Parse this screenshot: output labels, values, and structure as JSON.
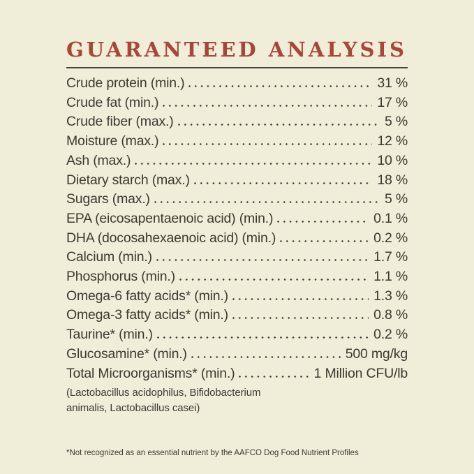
{
  "label": {
    "title": "GUARANTEED ANALYSIS",
    "rows": [
      {
        "name": "Crude protein (min.)",
        "value": "31 %"
      },
      {
        "name": "Crude fat (min.)",
        "value": "17 %"
      },
      {
        "name": "Crude fiber (max.)",
        "value": "5 %"
      },
      {
        "name": "Moisture (max.)",
        "value": "12 %"
      },
      {
        "name": "Ash (max.)",
        "value": "10 %"
      },
      {
        "name": "Dietary starch (max.)",
        "value": "18 %"
      },
      {
        "name": "Sugars (max.)",
        "value": "5 %"
      },
      {
        "name": "EPA (eicosapentaenoic acid) (min.)",
        "value": "0.1 %"
      },
      {
        "name": "DHA (docosahexaenoic acid) (min.)",
        "value": "0.2 %"
      },
      {
        "name": "Calcium (min.)",
        "value": "1.7 %"
      },
      {
        "name": "Phosphorus (min.)",
        "value": "1.1 %"
      },
      {
        "name": "Omega-6 fatty acids* (min.)",
        "value": "1.3 %"
      },
      {
        "name": "Omega-3 fatty acids* (min.)",
        "value": "0.8 %"
      },
      {
        "name": "Taurine* (min.)",
        "value": "0.2 %"
      },
      {
        "name": "Glucosamine* (min.)",
        "value": "500 mg/kg"
      },
      {
        "name": "Total Microorganisms* (min.)",
        "value": "1 Million CFU/lb"
      }
    ],
    "strains_note_line1": "(Lactobacillus acidophilus, Bifidobacterium",
    "strains_note_line2": "animalis, Lactobacillus casei)",
    "footnote": "*Not recognized as an essential nutrient by the AAFCO Dog Food Nutrient Profiles"
  },
  "colors": {
    "background": "#f0edd8",
    "accent": "#a9463a",
    "text": "#3c3a31",
    "rule": "#45443a"
  }
}
